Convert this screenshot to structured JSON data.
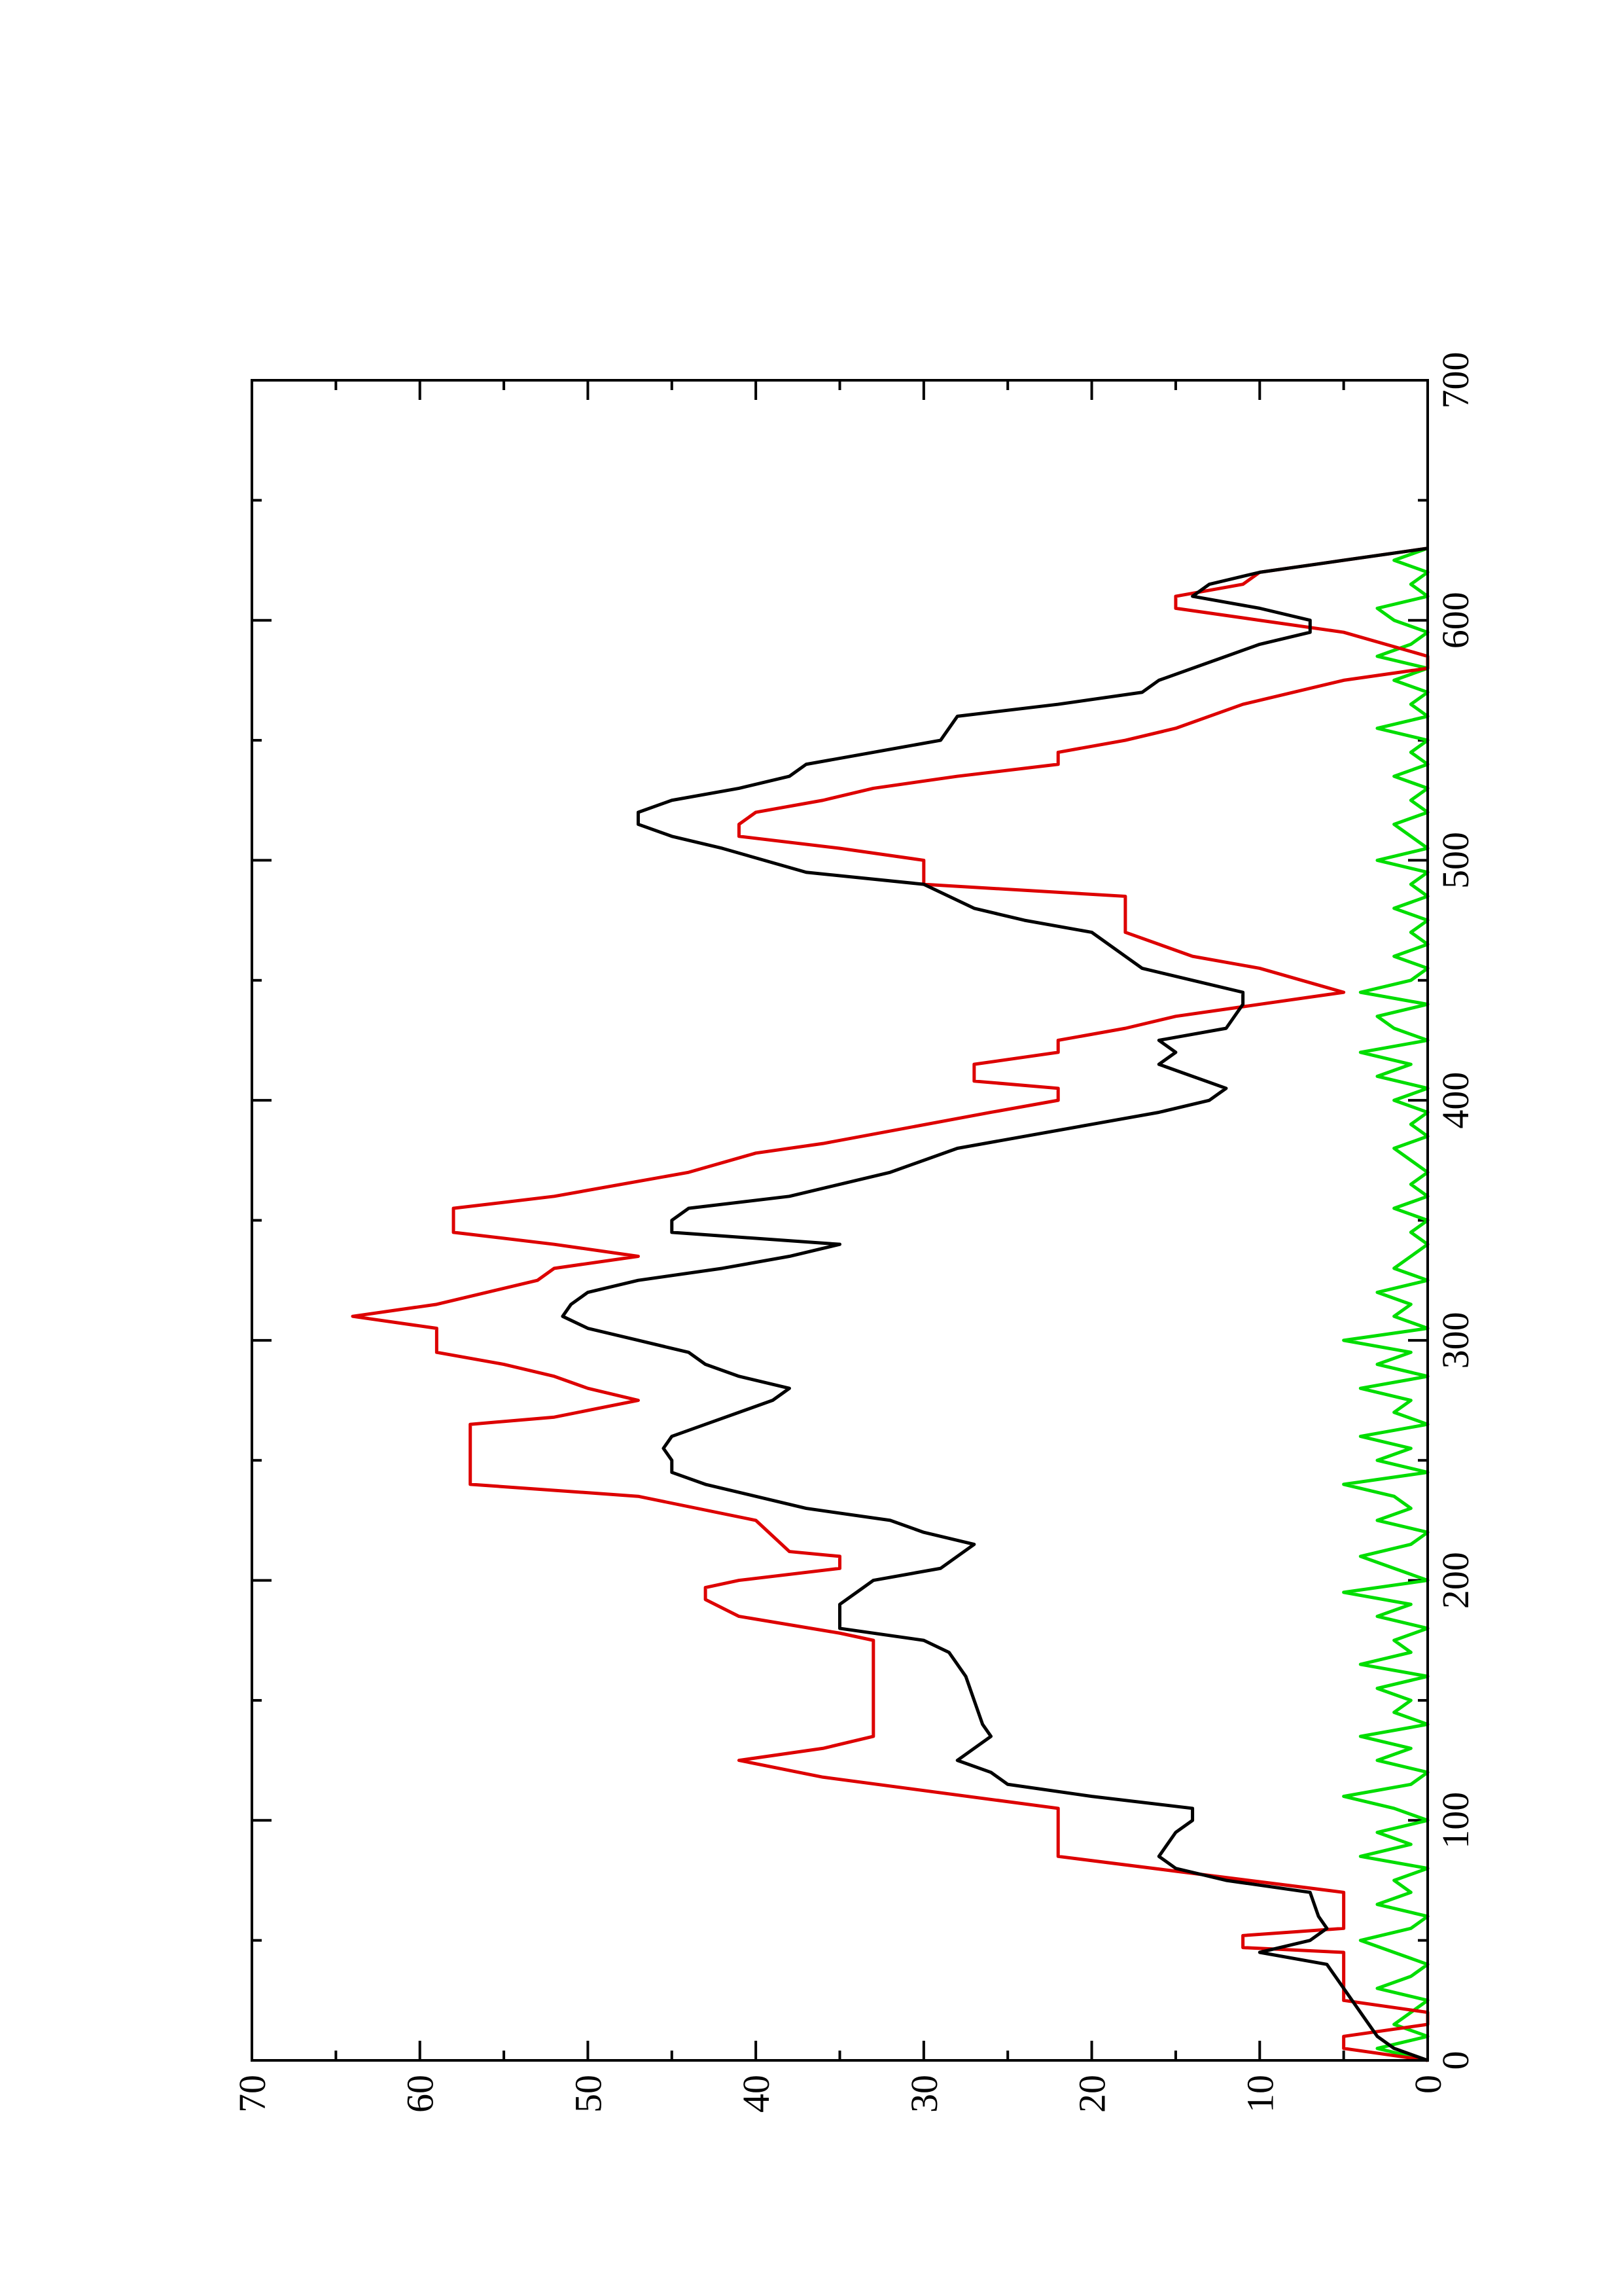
{
  "chart_data": {
    "type": "line",
    "xlim": [
      0,
      700
    ],
    "xticks": [
      0,
      100,
      200,
      300,
      400,
      500,
      600,
      700
    ],
    "xminor": [
      50,
      150,
      250,
      350,
      450,
      550,
      650
    ],
    "ylim": [
      0,
      70
    ],
    "yticks": [
      0,
      10,
      20,
      30,
      40,
      50,
      60,
      70
    ],
    "yminor": [
      5,
      15,
      25,
      35,
      45,
      55,
      65
    ],
    "series": [
      {
        "color": "#000000",
        "x": [
          0,
          5,
          10,
          20,
          30,
          40,
          45,
          50,
          55,
          60,
          70,
          75,
          80,
          85,
          95,
          100,
          105,
          110,
          115,
          120,
          125,
          130,
          135,
          140,
          150,
          160,
          170,
          175,
          180,
          190,
          195,
          200,
          205,
          210,
          215,
          220,
          225,
          230,
          240,
          245,
          250,
          255,
          260,
          265,
          270,
          275,
          280,
          285,
          290,
          295,
          300,
          305,
          310,
          315,
          320,
          325,
          330,
          335,
          340,
          345,
          350,
          355,
          360,
          370,
          380,
          390,
          395,
          400,
          405,
          410,
          415,
          420,
          425,
          430,
          440,
          445,
          450,
          455,
          460,
          470,
          475,
          480,
          490,
          495,
          505,
          510,
          515,
          520,
          525,
          530,
          535,
          540,
          545,
          550,
          560,
          565,
          570,
          575,
          585,
          590,
          595,
          600,
          605,
          610,
          615,
          620,
          625,
          630
        ],
        "values": [
          0,
          2,
          3,
          4,
          5,
          6,
          10,
          7,
          6,
          6.5,
          7,
          12,
          15,
          16,
          15,
          14,
          14,
          20,
          25,
          26,
          28,
          27,
          26,
          26.5,
          27,
          27.5,
          28.5,
          30,
          35,
          35,
          34,
          33,
          29,
          28,
          27,
          30,
          32,
          37,
          43,
          45,
          45,
          45.5,
          45,
          43,
          41,
          39,
          38,
          41,
          43,
          44,
          47,
          50,
          51.5,
          51,
          50,
          47,
          42,
          38,
          35,
          45,
          45,
          44,
          38,
          32,
          28,
          20,
          16,
          13,
          12,
          14,
          16,
          15,
          16,
          12,
          11,
          11,
          14,
          17,
          18,
          20,
          24,
          27,
          30,
          37,
          42,
          45,
          47,
          47,
          45,
          41,
          38,
          37,
          33,
          29,
          28,
          22,
          17,
          16,
          12,
          10,
          7,
          7,
          10,
          14,
          13,
          10,
          5,
          0
        ]
      },
      {
        "color": "#dd0000",
        "x": [
          0,
          5,
          10,
          15,
          20,
          25,
          45,
          47,
          52,
          55,
          70,
          85,
          105,
          118,
          125,
          130,
          135,
          175,
          178,
          185,
          192,
          197,
          200,
          205,
          210,
          212,
          225,
          235,
          240,
          265,
          268,
          275,
          280,
          285,
          290,
          295,
          305,
          310,
          315,
          325,
          330,
          335,
          340,
          345,
          355,
          360,
          370,
          378,
          382,
          395,
          400,
          405,
          408,
          415,
          420,
          425,
          430,
          435,
          440,
          445,
          455,
          460,
          465,
          470,
          485,
          490,
          500,
          505,
          510,
          515,
          520,
          525,
          530,
          535,
          540,
          545,
          550,
          555,
          565,
          575,
          580,
          585,
          595,
          600,
          605,
          610,
          615,
          620,
          625,
          630
        ],
        "values": [
          0,
          5,
          5,
          0,
          0,
          5,
          5,
          11,
          11,
          5,
          5,
          22,
          22,
          36,
          41,
          36,
          33,
          33,
          35,
          41,
          43,
          43,
          41,
          35,
          35,
          38,
          40,
          47,
          57,
          57,
          52,
          47,
          50,
          52,
          55,
          59,
          59,
          64,
          59,
          53,
          52,
          47,
          52,
          58,
          58,
          52,
          44,
          40,
          36,
          26,
          22,
          22,
          27,
          27,
          22,
          22,
          18,
          15,
          10,
          5,
          10,
          14,
          16,
          18,
          18,
          30,
          30,
          35,
          41,
          41,
          40,
          36,
          33,
          28,
          22,
          22,
          18,
          15,
          11,
          5,
          0,
          0,
          5,
          10,
          15,
          15,
          11,
          10,
          5,
          0
        ]
      },
      {
        "color": "#00dd00",
        "x": [
          0,
          5,
          10,
          15,
          20,
          25,
          30,
          35,
          40,
          45,
          50,
          55,
          60,
          65,
          70,
          75,
          80,
          85,
          90,
          95,
          100,
          105,
          110,
          115,
          120,
          125,
          130,
          135,
          140,
          145,
          150,
          155,
          160,
          165,
          170,
          175,
          180,
          185,
          190,
          195,
          200,
          205,
          210,
          215,
          220,
          225,
          230,
          235,
          240,
          245,
          250,
          255,
          260,
          265,
          270,
          275,
          280,
          285,
          290,
          295,
          300,
          305,
          310,
          315,
          320,
          325,
          330,
          335,
          340,
          345,
          350,
          355,
          360,
          365,
          370,
          375,
          380,
          385,
          390,
          395,
          400,
          405,
          410,
          415,
          420,
          425,
          430,
          435,
          440,
          445,
          450,
          455,
          460,
          465,
          470,
          475,
          480,
          485,
          490,
          495,
          500,
          505,
          510,
          515,
          520,
          525,
          530,
          535,
          540,
          545,
          550,
          555,
          560,
          565,
          570,
          575,
          580,
          585,
          590,
          595,
          600,
          605,
          610,
          615,
          620,
          625,
          630
        ],
        "values": [
          0,
          3,
          0,
          2,
          1,
          0,
          3,
          1,
          0,
          2,
          4,
          1,
          0,
          3,
          1,
          2,
          0,
          4,
          1,
          3,
          0,
          2,
          5,
          1,
          0,
          3,
          1,
          4,
          0,
          2,
          1,
          3,
          0,
          4,
          1,
          2,
          0,
          3,
          1,
          5,
          0,
          2,
          4,
          1,
          0,
          3,
          1,
          2,
          5,
          0,
          3,
          1,
          4,
          0,
          2,
          1,
          4,
          0,
          3,
          1,
          5,
          0,
          2,
          1,
          3,
          0,
          2,
          1,
          0,
          1,
          0,
          2,
          0,
          1,
          0,
          1,
          2,
          0,
          1,
          0,
          2,
          0,
          3,
          1,
          4,
          0,
          2,
          3,
          0,
          4,
          1,
          0,
          2,
          0,
          1,
          0,
          2,
          0,
          1,
          0,
          3,
          0,
          1,
          2,
          0,
          1,
          0,
          2,
          0,
          1,
          0,
          3,
          0,
          1,
          0,
          2,
          0,
          3,
          1,
          0,
          2,
          3,
          0,
          1,
          0,
          2,
          0
        ]
      }
    ]
  }
}
